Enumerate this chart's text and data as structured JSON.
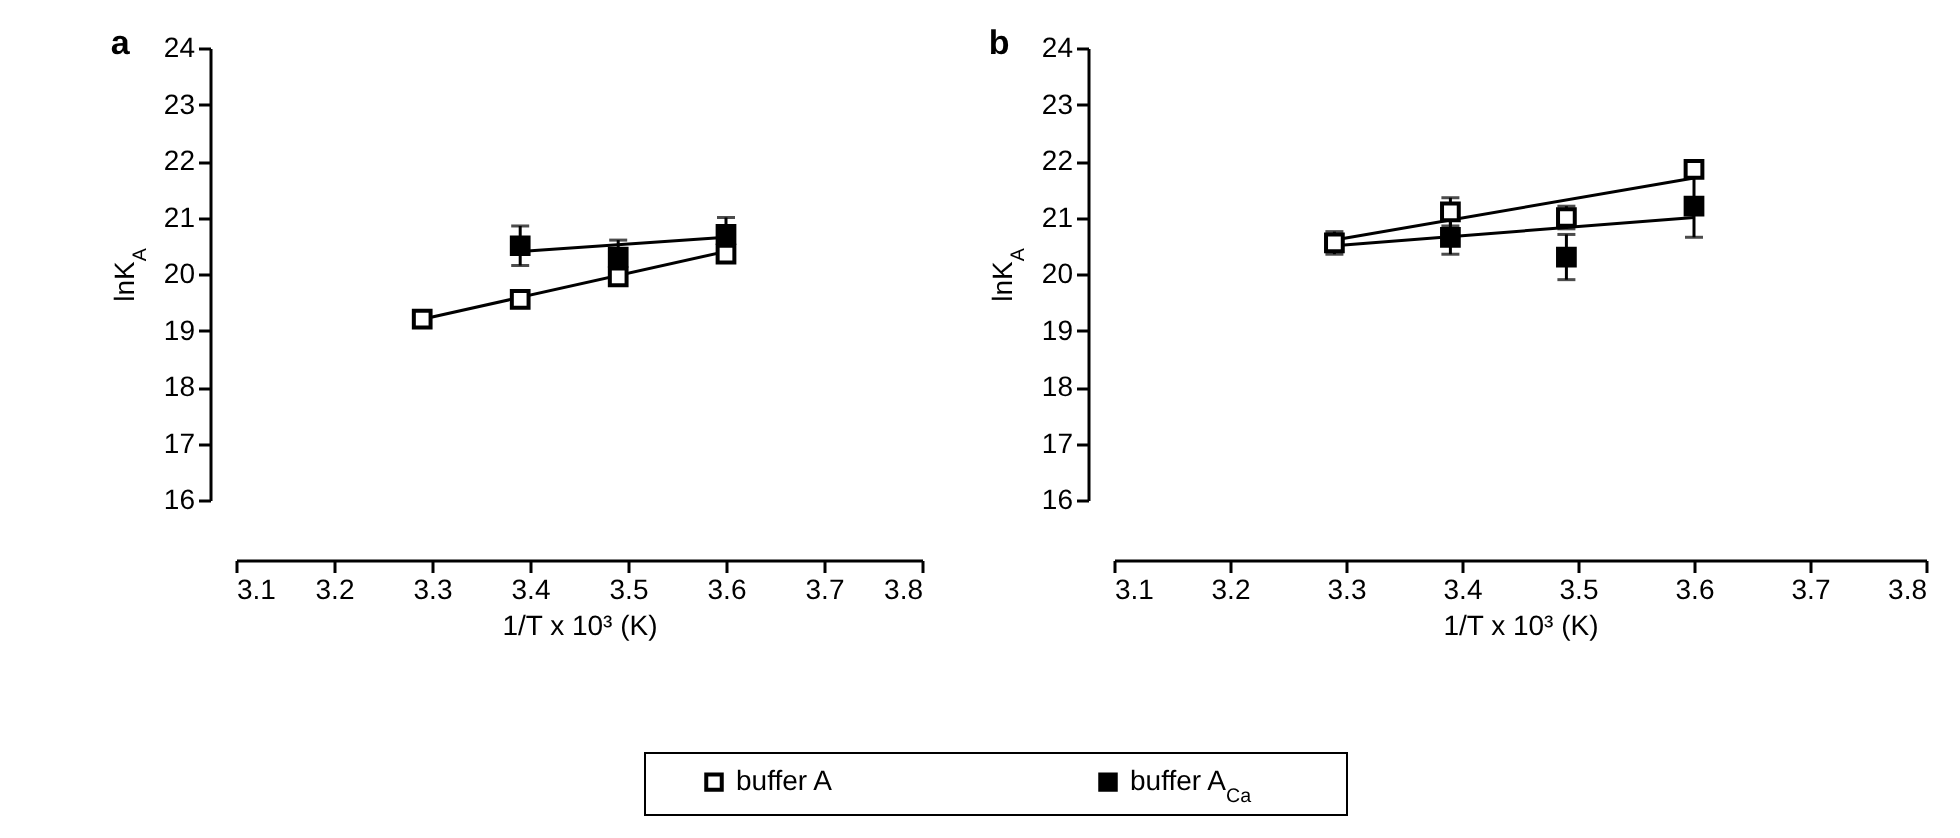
{
  "chart_data": [
    {
      "type": "scatter",
      "title": "a",
      "xlabel": "1/T x 10³ (K)",
      "ylabel": "lnK$_{A}$",
      "xlim": [
        3.1,
        3.8
      ],
      "xticks": [
        3.1,
        3.2,
        3.3,
        3.4,
        3.5,
        3.6,
        3.7,
        3.8
      ],
      "ylim": [
        16,
        24
      ],
      "yticks": [
        16,
        17,
        18,
        19,
        20,
        21,
        22,
        23,
        24
      ],
      "grid": false,
      "legend": "bottom",
      "series": [
        {
          "type": "line",
          "color": "#000000",
          "marker": "none",
          "x": [
            3.29,
            3.6
          ],
          "values": [
            19.2,
            20.4
          ]
        },
        {
          "type": "line",
          "color": "#000000",
          "marker": "none",
          "x": [
            3.39,
            3.6
          ],
          "values": [
            20.4,
            20.65
          ]
        },
        {
          "name": "buffer A",
          "type": "scatter",
          "marker": "square",
          "color": "#ffffff",
          "x": [
            3.29,
            3.39,
            3.49,
            3.6
          ],
          "values": [
            19.2,
            19.55,
            19.95,
            20.35
          ],
          "errors": [
            null,
            null,
            0.15,
            null
          ]
        },
        {
          "name": "buffer A$_{Ca}$",
          "type": "scatter",
          "marker": "square",
          "color": "#000000",
          "x": [
            3.39,
            3.49,
            3.6
          ],
          "values": [
            20.5,
            20.3,
            20.7
          ],
          "errors": [
            0.35,
            0.3,
            0.3
          ]
        }
      ]
    },
    {
      "type": "scatter",
      "title": "b",
      "xlabel": "1/T x 10³ (K)",
      "ylabel": "lnK$_{A}$",
      "xlim": [
        3.1,
        3.8
      ],
      "xticks": [
        3.1,
        3.2,
        3.3,
        3.4,
        3.5,
        3.6,
        3.7,
        3.8
      ],
      "ylim": [
        16,
        24
      ],
      "yticks": [
        16,
        17,
        18,
        19,
        20,
        21,
        22,
        23,
        24
      ],
      "grid": false,
      "series": [
        {
          "type": "line",
          "color": "#000000",
          "marker": "none",
          "x": [
            3.29,
            3.6
          ],
          "values": [
            20.6,
            21.7
          ]
        },
        {
          "type": "line",
          "color": "#000000",
          "marker": "none",
          "x": [
            3.29,
            3.6
          ],
          "values": [
            20.5,
            21.0
          ]
        },
        {
          "type": "scatter",
          "marker": "square",
          "color": "#ffffff",
          "x": [
            3.29,
            3.39,
            3.49,
            3.6
          ],
          "values": [
            20.55,
            21.1,
            21.0,
            21.85
          ],
          "errors": [
            0.2,
            0.25,
            0.2,
            null
          ]
        },
        {
          "type": "scatter",
          "marker": "square",
          "color": "#000000",
          "x": [
            3.39,
            3.49,
            3.6
          ],
          "values": [
            20.65,
            20.3,
            21.2
          ],
          "errors": [
            0.3,
            0.4,
            0.55
          ]
        }
      ]
    }
  ]
}
